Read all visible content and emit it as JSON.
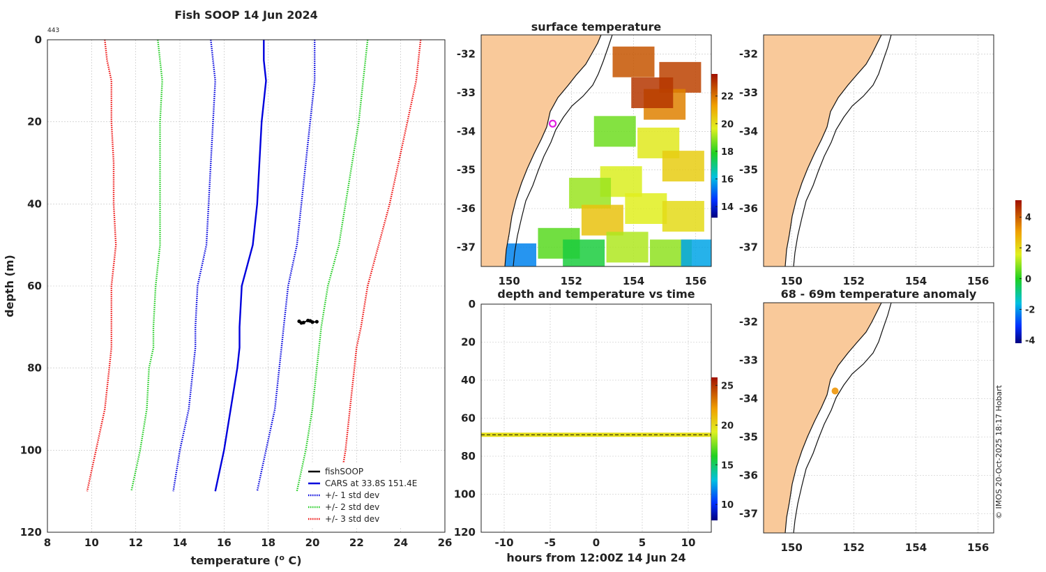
{
  "page": {
    "title": "Fish SOOP 14 Jun 2024",
    "profile_count": "443",
    "credit": "© IMOS 20-Oct-2025 18:17 Hobart"
  },
  "chart_data": [
    {
      "type": "line",
      "title": "Fish SOOP 14 Jun 2024",
      "xlabel": "temperature (",
      "xlabel_sup": "o",
      "xlabel_end": " C)",
      "ylabel": "depth (m)",
      "xlim": [
        8,
        26
      ],
      "ylim": [
        0,
        120
      ],
      "y_reversed": true,
      "xticks": [
        8,
        10,
        12,
        14,
        16,
        18,
        20,
        22,
        24,
        26
      ],
      "yticks": [
        0,
        20,
        40,
        60,
        80,
        100,
        120
      ],
      "grid": true,
      "legend_position": "bottom-right",
      "depth": [
        0,
        5,
        10,
        20,
        30,
        40,
        50,
        60,
        70,
        75,
        80,
        90,
        100,
        110
      ],
      "series": [
        {
          "name": "fishSOOP",
          "color": "#000000",
          "style": "solid",
          "points": [
            [
              19.4,
              68.6
            ],
            [
              19.6,
              68.9
            ],
            [
              19.8,
              68.4
            ],
            [
              20.0,
              68.8
            ],
            [
              20.2,
              68.7
            ],
            [
              19.5,
              69.0
            ],
            [
              19.9,
              68.5
            ]
          ]
        },
        {
          "name": "CARS at 33.8S 151.4E",
          "color": "#0000dd",
          "style": "solid",
          "values": [
            17.8,
            17.8,
            17.9,
            17.7,
            17.6,
            17.5,
            17.3,
            16.8,
            16.7,
            16.7,
            16.6,
            16.3,
            16.0,
            15.6
          ]
        },
        {
          "name": "+/- 1 std dev",
          "color": "#0000dd",
          "style": "dotted",
          "upper": [
            20.1,
            20.1,
            20.1,
            19.9,
            19.7,
            19.5,
            19.3,
            18.9,
            18.7,
            18.6,
            18.5,
            18.3,
            17.9,
            17.5
          ],
          "lower": [
            15.4,
            15.5,
            15.6,
            15.5,
            15.4,
            15.3,
            15.2,
            14.8,
            14.7,
            14.7,
            14.6,
            14.4,
            14.0,
            13.7
          ]
        },
        {
          "name": "+/- 2 std dev",
          "color": "#22cc22",
          "style": "dotted",
          "upper": [
            22.5,
            22.4,
            22.3,
            22.1,
            21.8,
            21.5,
            21.2,
            20.7,
            20.4,
            20.3,
            20.2,
            20.0,
            19.7,
            19.3
          ],
          "lower": [
            13.0,
            13.1,
            13.2,
            13.1,
            13.1,
            13.1,
            13.1,
            12.9,
            12.8,
            12.8,
            12.6,
            12.5,
            12.2,
            11.8
          ]
        },
        {
          "name": "+/- 3 std dev",
          "color": "#ee1111",
          "style": "dotted",
          "upper": [
            24.9,
            24.8,
            24.7,
            24.3,
            23.9,
            23.5,
            23.0,
            22.5,
            22.2,
            22.0,
            21.9,
            21.7,
            21.5,
            21.2
          ],
          "lower": [
            10.6,
            10.7,
            10.9,
            10.9,
            11.0,
            11.0,
            11.1,
            10.9,
            10.9,
            10.9,
            10.8,
            10.6,
            10.2,
            9.8
          ]
        }
      ]
    },
    {
      "type": "heatmap",
      "title": "surface temperature",
      "xlim": [
        149.1,
        156.5
      ],
      "ylim": [
        -37.5,
        -31.5
      ],
      "xticks": [
        150,
        152,
        154,
        156
      ],
      "yticks": [
        -32,
        -33,
        -34,
        -35,
        -36,
        -37
      ],
      "colorbar": {
        "min": 13.2,
        "max": 23.6,
        "ticks": [
          14,
          16,
          18,
          20,
          22
        ]
      },
      "marker": {
        "lon": 151.4,
        "lat": -33.8,
        "color": "#e020e0",
        "shape": "ring"
      },
      "cells": [
        {
          "lon": 154.0,
          "lat": -32.2,
          "t": 22.5
        },
        {
          "lon": 155.5,
          "lat": -32.6,
          "t": 22.8
        },
        {
          "lon": 155.0,
          "lat": -33.3,
          "t": 21.8
        },
        {
          "lon": 154.6,
          "lat": -33.0,
          "t": 23.0
        },
        {
          "lon": 153.4,
          "lat": -34.0,
          "t": 18.6
        },
        {
          "lon": 154.8,
          "lat": -34.3,
          "t": 19.8
        },
        {
          "lon": 155.6,
          "lat": -34.9,
          "t": 20.4
        },
        {
          "lon": 153.6,
          "lat": -35.3,
          "t": 19.6
        },
        {
          "lon": 152.6,
          "lat": -35.6,
          "t": 19.0
        },
        {
          "lon": 153.0,
          "lat": -36.3,
          "t": 20.6
        },
        {
          "lon": 154.4,
          "lat": -36.0,
          "t": 19.7
        },
        {
          "lon": 155.6,
          "lat": -36.2,
          "t": 20.1
        },
        {
          "lon": 151.6,
          "lat": -36.9,
          "t": 18.4
        },
        {
          "lon": 152.4,
          "lat": -37.2,
          "t": 17.6
        },
        {
          "lon": 153.8,
          "lat": -37.0,
          "t": 19.2
        },
        {
          "lon": 155.2,
          "lat": -37.2,
          "t": 18.9
        },
        {
          "lon": 150.2,
          "lat": -37.3,
          "t": 15.4
        },
        {
          "lon": 156.2,
          "lat": -37.2,
          "t": 15.8
        }
      ]
    },
    {
      "type": "scatter",
      "title": "",
      "xlim": [
        149.1,
        156.5
      ],
      "ylim": [
        -37.5,
        -31.5
      ],
      "xticks": [
        150,
        152,
        154,
        156
      ],
      "yticks": [
        -32,
        -33,
        -34,
        -35,
        -36,
        -37
      ],
      "points": []
    },
    {
      "type": "scatter",
      "title": "depth and temperature vs time",
      "xlabel": "hours from 12:00Z 14 Jun 24",
      "xlim": [
        -12.5,
        12.5
      ],
      "ylim": [
        0,
        120
      ],
      "y_reversed": true,
      "xticks": [
        -10,
        -5,
        0,
        5,
        10
      ],
      "yticks": [
        0,
        20,
        40,
        60,
        80,
        100,
        120
      ],
      "colorbar": {
        "min": 8,
        "max": 26,
        "ticks": [
          10,
          15,
          20,
          25
        ]
      },
      "track": {
        "depth": 68.7,
        "temperature": 19.8,
        "x_start": -12.5,
        "x_end": 12.5
      }
    },
    {
      "type": "scatter",
      "title": "68 - 69m temperature anomaly",
      "xlim": [
        149.1,
        156.5
      ],
      "ylim": [
        -37.5,
        -31.5
      ],
      "xticks": [
        150,
        152,
        154,
        156
      ],
      "yticks": [
        -32,
        -33,
        -34,
        -35,
        -36,
        -37
      ],
      "colorbar": {
        "min": -4.2,
        "max": 5.1,
        "ticks": [
          -4,
          -2,
          0,
          2,
          4
        ]
      },
      "points": [
        {
          "lon": 151.4,
          "lat": -33.8,
          "anomaly": 3.3,
          "color": "#f0a020"
        }
      ]
    }
  ]
}
